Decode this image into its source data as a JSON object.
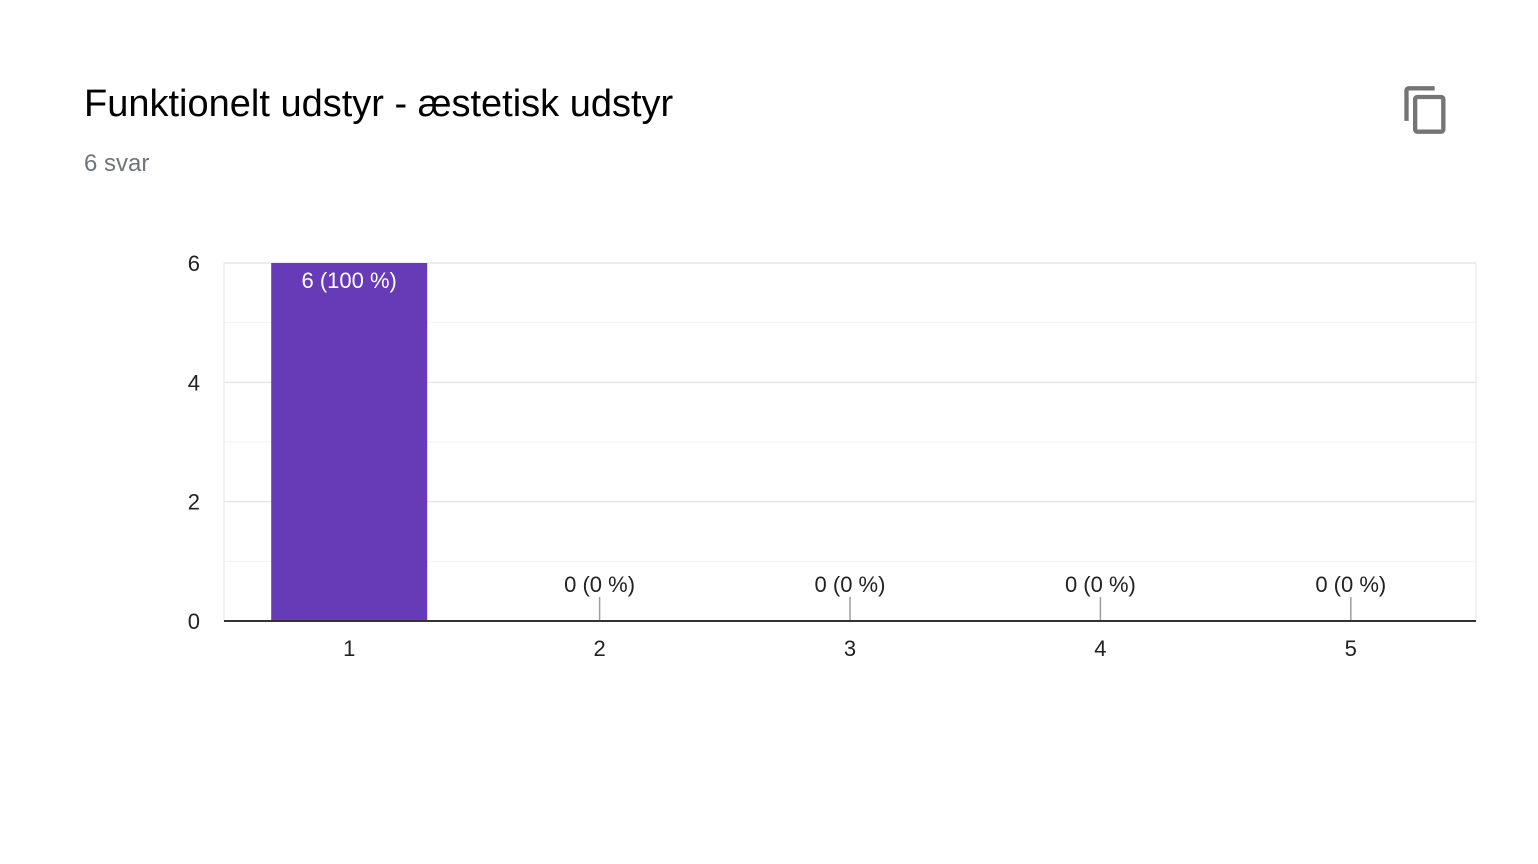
{
  "question": {
    "title": "Funktionelt udstyr - æstetisk udstyr",
    "response_count": "6 svar"
  },
  "toolbar": {
    "copy_icon": "copy-icon"
  },
  "colors": {
    "bar": "#673ab7",
    "grid": "#e6e6e6",
    "axis": "#333333",
    "text": "#222222",
    "inner_label": "#ffffff"
  },
  "chart_data": {
    "type": "bar",
    "categories": [
      "1",
      "2",
      "3",
      "4",
      "5"
    ],
    "values": [
      6,
      0,
      0,
      0,
      0
    ],
    "data_labels": [
      "6 (100 %)",
      "0 (0 %)",
      "0 (0 %)",
      "0 (0 %)",
      "0 (0 %)"
    ],
    "y_ticks": [
      "0",
      "2",
      "4",
      "6"
    ],
    "ylim": [
      0,
      6
    ],
    "minor_gridlines": [
      1,
      3,
      5
    ],
    "grid": true,
    "legend": "none",
    "xlabel": "",
    "ylabel": ""
  }
}
